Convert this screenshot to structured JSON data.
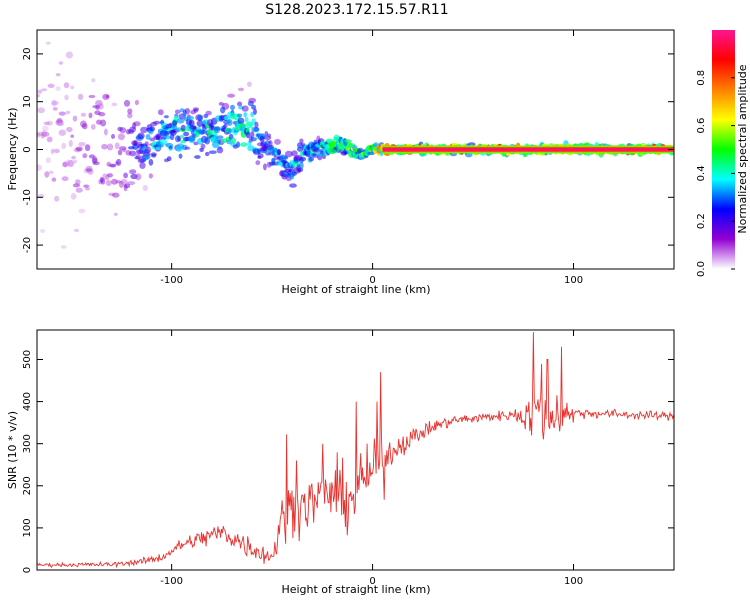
{
  "title": "S128.2023.172.15.57.R11",
  "chart_data": [
    {
      "type": "heatmap",
      "xlabel": "Height of straight line (km)",
      "ylabel": "Frequency (Hz)",
      "xlim": [
        -167,
        150
      ],
      "ylim": [
        -25,
        25
      ],
      "x_ticks": [
        -100,
        0,
        100
      ],
      "x_tick_labels": [
        "-100",
        "0",
        "100"
      ],
      "y_ticks": [
        -20,
        -10,
        0,
        10,
        20
      ],
      "y_tick_labels": [
        "-20",
        "-10",
        "0",
        "10",
        "20"
      ],
      "grid": false,
      "colorbar": {
        "label": "Normalized spectral amplitude",
        "range": [
          0,
          1
        ],
        "ticks": [
          0.0,
          0.2,
          0.4,
          0.6,
          0.8
        ],
        "tick_labels": [
          "0.0",
          "0.2",
          "0.4",
          "0.6",
          "0.8"
        ],
        "colors": [
          "#ffffff",
          "#9400d3",
          "#0000ff",
          "#00ffff",
          "#00ff00",
          "#ffff00",
          "#ff7f00",
          "#ff0000",
          "#ff1493"
        ]
      },
      "ridge": [
        [
          -167,
          0
        ],
        [
          -130,
          0
        ],
        [
          -120,
          0.5
        ],
        [
          -110,
          2
        ],
        [
          -100,
          3.5
        ],
        [
          -90,
          4
        ],
        [
          -80,
          3.5
        ],
        [
          -70,
          4
        ],
        [
          -62,
          4.5
        ],
        [
          -57,
          3
        ],
        [
          -53,
          0
        ],
        [
          -48,
          -1
        ],
        [
          -44,
          -3
        ],
        [
          -40,
          -4.5
        ],
        [
          -35,
          -1
        ],
        [
          -25,
          0.5
        ],
        [
          -15,
          1
        ],
        [
          -10,
          0
        ],
        [
          -5,
          -1
        ],
        [
          0,
          0
        ],
        [
          10,
          0
        ],
        [
          60,
          0
        ],
        [
          100,
          0
        ],
        [
          150,
          0
        ]
      ],
      "ridge_amplitude": [
        [
          -167,
          0.1
        ],
        [
          -125,
          0.2
        ],
        [
          -110,
          0.4
        ],
        [
          -95,
          0.5
        ],
        [
          -80,
          0.45
        ],
        [
          -65,
          0.5
        ],
        [
          -55,
          0.35
        ],
        [
          -45,
          0.4
        ],
        [
          -30,
          0.45
        ],
        [
          -15,
          0.7
        ],
        [
          -5,
          0.55
        ],
        [
          0,
          0.7
        ],
        [
          5,
          0.95
        ],
        [
          150,
          0.95
        ]
      ],
      "ridge_spread_hz": [
        [
          -167,
          22
        ],
        [
          -140,
          18
        ],
        [
          -125,
          12
        ],
        [
          -110,
          5
        ],
        [
          -80,
          5
        ],
        [
          -60,
          7
        ],
        [
          -50,
          3
        ],
        [
          -40,
          3
        ],
        [
          -20,
          1.5
        ],
        [
          0,
          1
        ],
        [
          10,
          0.8
        ],
        [
          150,
          0.8
        ]
      ]
    },
    {
      "type": "line",
      "xlabel": "Height of straight line (km)",
      "ylabel": "SNR (10 * v/v)",
      "xlim": [
        -167,
        150
      ],
      "ylim": [
        0,
        570
      ],
      "x_ticks": [
        -100,
        0,
        100
      ],
      "x_tick_labels": [
        "-100",
        "0",
        "100"
      ],
      "y_ticks": [
        0,
        100,
        200,
        300,
        400,
        500
      ],
      "y_tick_labels": [
        "0",
        "100",
        "200",
        "300",
        "400",
        "500"
      ],
      "grid": false,
      "color": "#e8322e",
      "baseline": [
        [
          -167,
          12
        ],
        [
          -130,
          13
        ],
        [
          -115,
          20
        ],
        [
          -105,
          30
        ],
        [
          -95,
          60
        ],
        [
          -85,
          75
        ],
        [
          -75,
          90
        ],
        [
          -65,
          65
        ],
        [
          -55,
          40
        ],
        [
          -50,
          30
        ],
        [
          -45,
          120
        ],
        [
          -40,
          150
        ],
        [
          -30,
          160
        ],
        [
          -20,
          185
        ],
        [
          -10,
          165
        ],
        [
          -5,
          215
        ],
        [
          0,
          235
        ],
        [
          5,
          260
        ],
        [
          10,
          285
        ],
        [
          20,
          315
        ],
        [
          30,
          340
        ],
        [
          40,
          355
        ],
        [
          60,
          365
        ],
        [
          75,
          370
        ],
        [
          85,
          365
        ],
        [
          95,
          375
        ],
        [
          110,
          372
        ],
        [
          150,
          365
        ]
      ],
      "noise": [
        [
          -167,
          4
        ],
        [
          -120,
          6
        ],
        [
          -100,
          12
        ],
        [
          -80,
          25
        ],
        [
          -60,
          28
        ],
        [
          -50,
          20
        ],
        [
          -45,
          60
        ],
        [
          -30,
          65
        ],
        [
          -20,
          70
        ],
        [
          -10,
          80
        ],
        [
          0,
          55
        ],
        [
          5,
          80
        ],
        [
          10,
          30
        ],
        [
          25,
          18
        ],
        [
          40,
          12
        ],
        [
          70,
          12
        ],
        [
          75,
          40
        ],
        [
          82,
          75
        ],
        [
          92,
          60
        ],
        [
          100,
          12
        ],
        [
          150,
          9
        ]
      ],
      "spikes": [
        [
          -43,
          322
        ],
        [
          -38,
          260
        ],
        [
          -25,
          300
        ],
        [
          -8,
          400
        ],
        [
          2,
          400
        ],
        [
          4,
          470
        ],
        [
          80,
          565
        ],
        [
          84,
          490
        ],
        [
          87,
          500
        ],
        [
          94,
          530
        ],
        [
          100,
          350
        ]
      ]
    }
  ]
}
